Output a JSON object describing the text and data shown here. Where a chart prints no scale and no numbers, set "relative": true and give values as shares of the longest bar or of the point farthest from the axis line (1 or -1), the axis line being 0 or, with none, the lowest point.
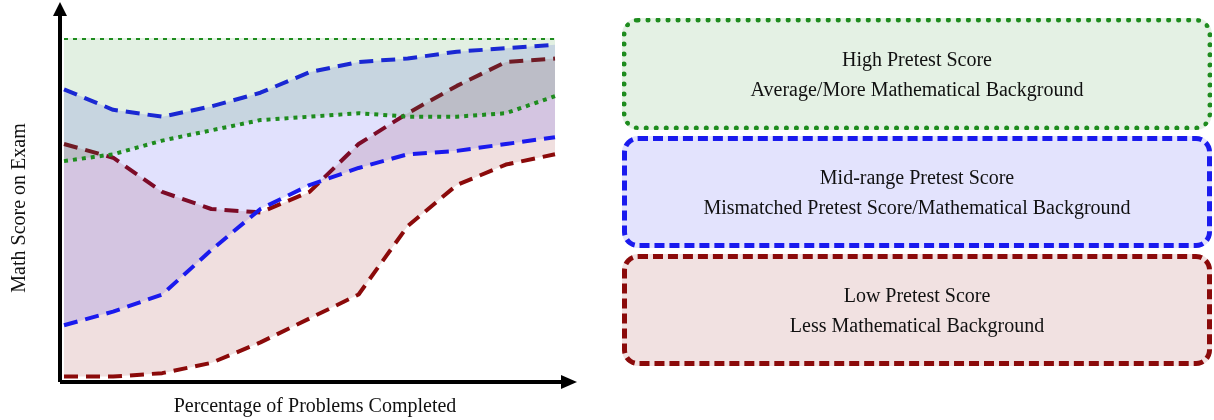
{
  "chart_data": {
    "type": "area",
    "relative": true,
    "xlabel": "Percentage of Problems Completed",
    "ylabel": "Math Score on Exam",
    "categories": [
      null,
      null,
      null,
      null,
      null,
      null,
      null,
      null,
      null,
      null,
      null
    ],
    "legend": "right",
    "grid": false,
    "series": [
      {
        "type": "line",
        "color": "#1e8c1e",
        "line_style": "dotted",
        "values": [
          0.64,
          0.66,
          0.7,
          0.73,
          0.76,
          0.77,
          0.78,
          0.77,
          0.77,
          0.78,
          0.83
        ]
      },
      {
        "type": "area",
        "name": "High Pretest Score\nAverage/More Mathematical Background",
        "color": "#1e8c1e",
        "line_style": "dotted",
        "values": [
          1,
          1,
          1,
          1,
          1,
          1,
          1,
          1,
          1,
          1,
          1
        ]
      },
      {
        "type": "line",
        "color": "#1a1aee",
        "line_style": "dashed",
        "values": [
          0.16,
          0.2,
          0.25,
          0.38,
          0.5,
          0.57,
          0.62,
          0.66,
          0.67,
          0.69,
          0.71
        ]
      },
      {
        "type": "area",
        "name": "Mid-range Pretest Score\nMismatched Pretest Score/Mathematical Background",
        "color": "#1a1aee",
        "line_style": "dashed",
        "values": [
          0.85,
          0.79,
          0.77,
          0.8,
          0.84,
          0.9,
          0.93,
          0.94,
          0.96,
          0.97,
          0.98
        ]
      },
      {
        "type": "line",
        "color": "#8b0a0a",
        "line_style": "dashed",
        "values": [
          0.01,
          0.01,
          0.02,
          0.05,
          0.11,
          0.18,
          0.25,
          0.45,
          0.57,
          0.63,
          0.66
        ]
      },
      {
        "type": "area",
        "name": "Low Pretest Score\nLess Mathematical Background",
        "color": "#8b0a0a",
        "line_style": "dashed",
        "values": [
          0.69,
          0.65,
          0.55,
          0.5,
          0.49,
          0.55,
          0.69,
          0.78,
          0.86,
          0.93,
          0.94
        ]
      }
    ]
  }
}
